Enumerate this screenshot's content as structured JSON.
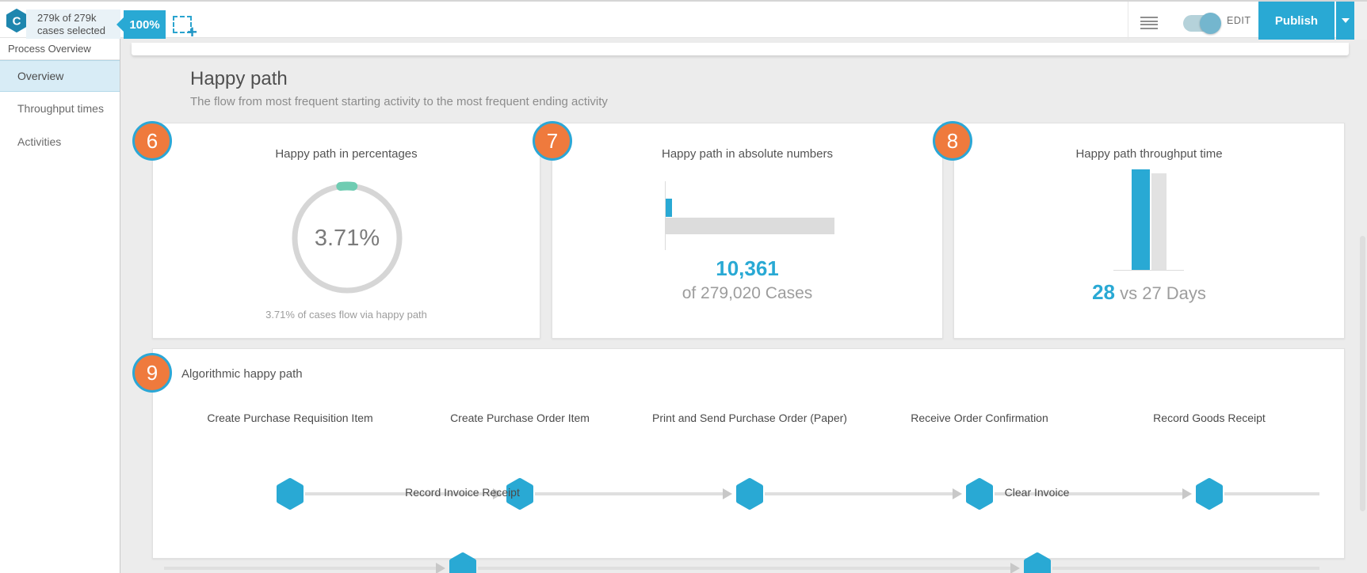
{
  "topbar": {
    "logo_letter": "C",
    "selection_line1": "279k of 279k",
    "selection_line2": "cases selected",
    "zoom_badge": "100%",
    "edit_label": "EDIT",
    "publish_label": "Publish"
  },
  "sidebar": {
    "header": "Process Overview",
    "items": [
      {
        "label": "Overview"
      },
      {
        "label": "Throughput times"
      },
      {
        "label": "Activities"
      }
    ]
  },
  "main": {
    "section_title": "Happy path",
    "section_subtitle": "The flow from most frequent starting activity to the most frequent ending activity",
    "cards": {
      "percentages": {
        "badge": "6",
        "title": "Happy path in percentages",
        "percent": 3.71,
        "center_label": "3.71%",
        "caption": "3.71% of cases flow via happy path"
      },
      "absolute": {
        "badge": "7",
        "title": "Happy path in absolute numbers",
        "happy_cases": 10361,
        "total_cases": 279020,
        "value_label": "10,361",
        "caption": "of 279,020 Cases"
      },
      "throughput": {
        "badge": "8",
        "title": "Happy path throughput time",
        "happy_days": 28,
        "comparison_days": 27,
        "value_label": "28",
        "caption_rest": " vs 27 Days"
      },
      "algorithmic": {
        "badge": "9",
        "title": "Algorithmic happy path",
        "row1": [
          "Create Purchase Requisition Item",
          "Create Purchase Order Item",
          "Print and Send Purchase Order (Paper)",
          "Receive Order Confirmation",
          "Record Goods Receipt"
        ],
        "row2": [
          "Record Invoice Receipt",
          "Clear Invoice"
        ]
      }
    }
  },
  "colors": {
    "accent_blue": "#29a9d4",
    "badge_orange": "#ef7a3d",
    "donut_teal": "#6fccb2"
  }
}
